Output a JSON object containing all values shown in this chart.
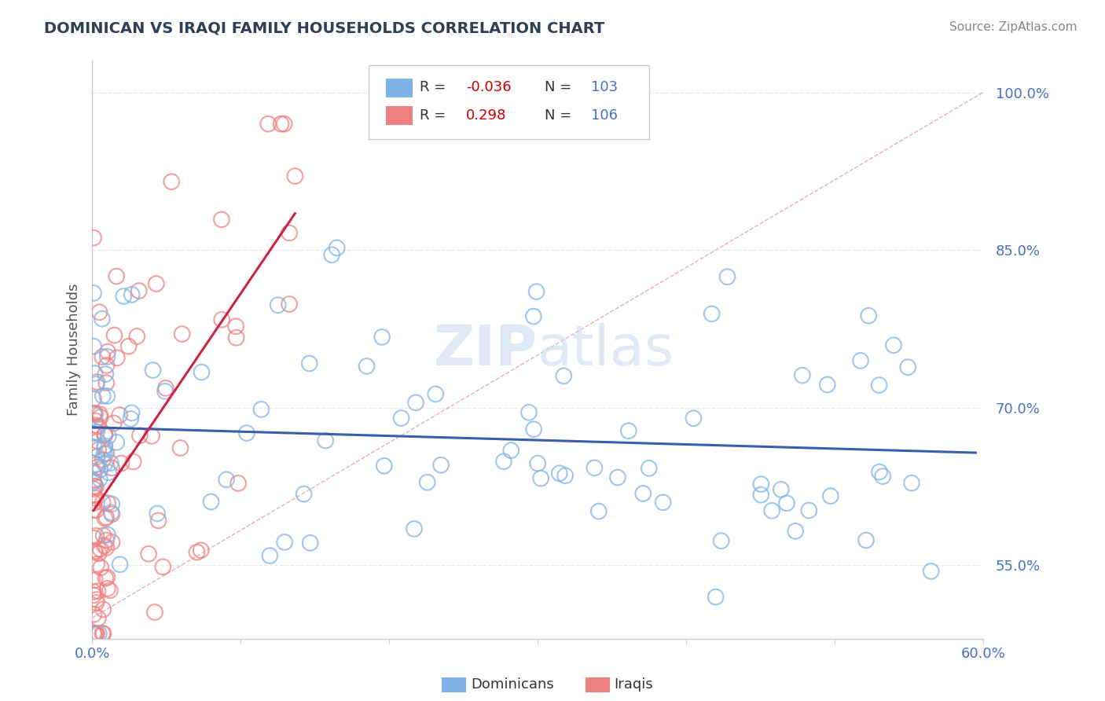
{
  "title": "DOMINICAN VS IRAQI FAMILY HOUSEHOLDS CORRELATION CHART",
  "source": "Source: ZipAtlas.com",
  "ylabel": "Family Households",
  "xlim": [
    0.0,
    0.6
  ],
  "ylim": [
    0.48,
    1.03
  ],
  "yticks": [
    0.55,
    0.7,
    0.85,
    1.0
  ],
  "ytick_labels": [
    "55.0%",
    "70.0%",
    "85.0%",
    "100.0%"
  ],
  "dominicans_R": "-0.036",
  "dominicans_N": "103",
  "iraqis_R": "0.298",
  "iraqis_N": "106",
  "dot_color_dominicans": "#7fb3e8",
  "dot_color_iraqis": "#f08080",
  "dot_edge_dominicans": "#7fb3e8",
  "dot_edge_iraqis": "#e06080",
  "line_color_dominicans": "#3a5faa",
  "line_color_iraqis": "#cc2244",
  "ref_line_color": "#e8a0a0",
  "background_color": "#ffffff",
  "grid_color": "#e8e8e8",
  "title_color": "#2e4057",
  "source_color": "#888888",
  "watermark_color": "#ccddf0",
  "ylabel_color": "#555555",
  "ytick_color": "#4472c4",
  "xtick_color": "#4472c4",
  "legend_box_color": "#cccccc",
  "legend_R_label_color": "#333333",
  "legend_R_val_color": "#cc0000",
  "legend_N_val_color": "#4472c4"
}
